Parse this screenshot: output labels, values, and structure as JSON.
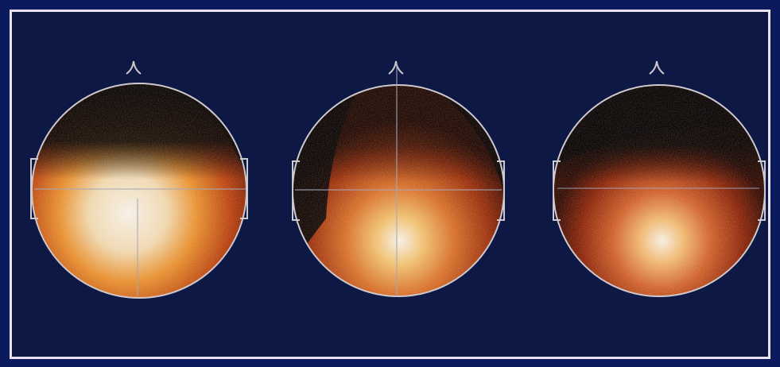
{
  "colors": {
    "outer_background": "#0a1a5c",
    "panel_background": "#0d1845",
    "panel_border": "#e9e3ee",
    "outline": "#cfc8cc",
    "crosshair": "#a6a8b8",
    "head_dark": "#0a0604",
    "heat_low": "#7a1a06",
    "heat_mid": "#c2480e",
    "heat_high": "#f0a040",
    "heat_peak": "#f6f0e6"
  },
  "heads": [
    {
      "name": "left-head",
      "activation_level": 0.95,
      "has_horizontal_crosshair": true,
      "has_vertical_crosshair": true
    },
    {
      "name": "center-head",
      "activation_level": 0.8,
      "has_horizontal_crosshair": true,
      "has_vertical_crosshair": true
    },
    {
      "name": "right-head",
      "activation_level": 0.7,
      "has_horizontal_crosshair": true,
      "has_vertical_crosshair": false
    }
  ]
}
